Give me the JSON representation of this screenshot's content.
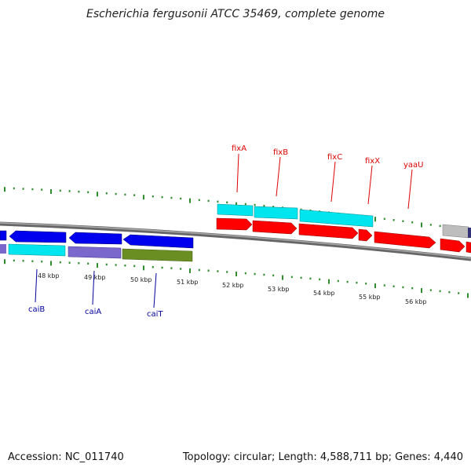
{
  "title": "Escherichia fergusonii ATCC 35469, complete genome",
  "footer": {
    "accession": "Accession: NC_011740",
    "summary": "Topology: circular; Length: 4,588,711 bp; Genes: 4,440"
  },
  "ticks": [
    "48 kbp",
    "49 kbp",
    "50 kbp",
    "51 kbp",
    "52 kbp",
    "53 kbp",
    "54 kbp",
    "55 kbp",
    "56 kbp"
  ],
  "genes_top": [
    "fixA",
    "fixB",
    "fixC",
    "fixX",
    "yaaU"
  ],
  "genes_bottom": [
    "caiB",
    "caiA",
    "caiT"
  ],
  "colors": {
    "forward_cds": "#ff0000",
    "reverse_cds": "#0000ee",
    "highlight": "#00e5ee",
    "lavender": "#7b68cc",
    "olive": "#6b8e23",
    "grey": "#bdbdbd",
    "backbone": "#888888",
    "tick": "#2e8b2e"
  }
}
